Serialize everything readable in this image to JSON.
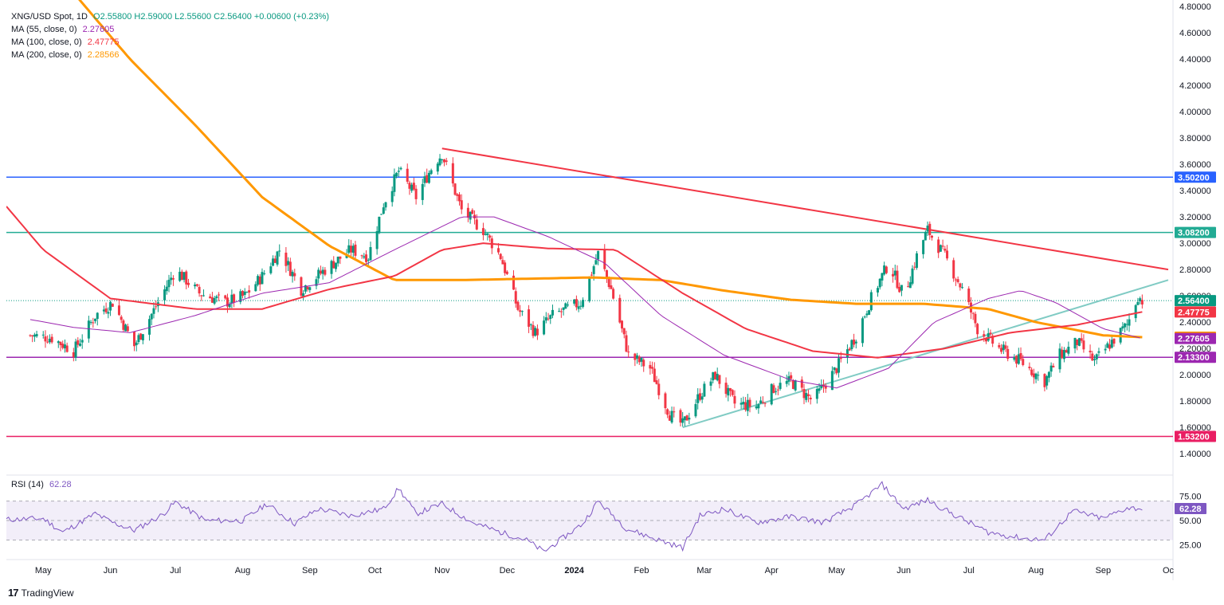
{
  "header": {
    "symbol": "XNG/USD Spot, 1D",
    "ohlc": "O2.55800  H2.59000  L2.55600  C2.56400  +0.00600 (+0.23%)",
    "ma55_label": "MA (55, close, 0)",
    "ma55_value": "2.27605",
    "ma100_label": "MA (100, close, 0)",
    "ma100_value": "2.47775",
    "ma200_label": "MA (200, close, 0)",
    "ma200_value": "2.28566"
  },
  "rsi": {
    "label": "RSI (14)",
    "value": "62.28"
  },
  "brand": {
    "logo": "17",
    "name": "TradingView"
  },
  "colors": {
    "up": "#089981",
    "down": "#f23645",
    "ma55": "#9c27b0",
    "ma100": "#f23645",
    "ma200": "#ff9800",
    "blue_level": "#2962ff",
    "teal_level": "#22ab94",
    "purple_level": "#9c27b0",
    "pink_level": "#e91e63",
    "trend_down": "#f23645",
    "trend_up": "#80cbc4",
    "rsi": "#7e57c2"
  },
  "chart_data": {
    "type": "candlestick",
    "y_axis_ticks": [
      "4.80000",
      "4.60000",
      "4.40000",
      "4.20000",
      "4.00000",
      "3.80000",
      "3.60000",
      "3.40000",
      "3.20000",
      "3.00000",
      "2.80000",
      "2.60000",
      "2.40000",
      "2.20000",
      "2.00000",
      "1.80000",
      "1.60000",
      "1.40000"
    ],
    "ylim": [
      1.25,
      4.8
    ],
    "x_axis_labels": [
      "May",
      "Jun",
      "Jul",
      "Aug",
      "Sep",
      "Oct",
      "Nov",
      "Dec",
      "2024",
      "Feb",
      "Mar",
      "Apr",
      "May",
      "Jun",
      "Jul",
      "Aug",
      "Sep",
      "Oc"
    ],
    "horizontal_levels": [
      {
        "value": 3.502,
        "label": "3.50200",
        "color": "#2962ff"
      },
      {
        "value": 3.082,
        "label": "3.08200",
        "color": "#22ab94"
      },
      {
        "value": 2.133,
        "label": "2.13300",
        "color": "#9c27b0"
      },
      {
        "value": 1.532,
        "label": "1.53200",
        "color": "#e91e63"
      }
    ],
    "price_badges": [
      {
        "value": 2.564,
        "label": "2.56400",
        "color": "#089981"
      },
      {
        "value": 2.47775,
        "label": "2.47775",
        "color": "#f23645"
      },
      {
        "value": 2.28566,
        "label": "2.28566",
        "color": "#ff9800"
      },
      {
        "value": 2.27605,
        "label": "2.27605",
        "color": "#9c27b0"
      }
    ],
    "last_price": 2.564,
    "trendlines": [
      {
        "name": "",
        "from": [
          "2023-11-01",
          3.72
        ],
        "to": [
          "2024-10-01",
          2.8
        ],
        "color": "#f23645"
      },
      {
        "name": "",
        "from": [
          "2024-02-20",
          1.6
        ],
        "to": [
          "2024-10-01",
          2.72
        ],
        "color": "#80cbc4"
      }
    ],
    "price_anchors": [
      [
        "2023-04-25",
        2.3
      ],
      [
        "2023-05-05",
        2.28
      ],
      [
        "2023-05-15",
        2.18
      ],
      [
        "2023-05-25",
        2.45
      ],
      [
        "2023-06-02",
        2.55
      ],
      [
        "2023-06-12",
        2.22
      ],
      [
        "2023-06-22",
        2.52
      ],
      [
        "2023-07-01",
        2.8
      ],
      [
        "2023-07-12",
        2.62
      ],
      [
        "2023-07-24",
        2.55
      ],
      [
        "2023-08-02",
        2.6
      ],
      [
        "2023-08-10",
        2.75
      ],
      [
        "2023-08-18",
        2.95
      ],
      [
        "2023-08-28",
        2.65
      ],
      [
        "2023-09-08",
        2.8
      ],
      [
        "2023-09-20",
        2.95
      ],
      [
        "2023-09-28",
        2.9
      ],
      [
        "2023-10-05",
        3.3
      ],
      [
        "2023-10-12",
        3.55
      ],
      [
        "2023-10-20",
        3.35
      ],
      [
        "2023-10-28",
        3.6
      ],
      [
        "2023-11-01",
        3.68
      ],
      [
        "2023-11-10",
        3.25
      ],
      [
        "2023-11-20",
        3.1
      ],
      [
        "2023-11-28",
        2.9
      ],
      [
        "2023-12-06",
        2.5
      ],
      [
        "2023-12-14",
        2.32
      ],
      [
        "2023-12-22",
        2.45
      ],
      [
        "2024-01-04",
        2.55
      ],
      [
        "2024-01-12",
        2.92
      ],
      [
        "2024-01-18",
        2.65
      ],
      [
        "2024-01-26",
        2.15
      ],
      [
        "2024-02-05",
        2.05
      ],
      [
        "2024-02-14",
        1.7
      ],
      [
        "2024-02-20",
        1.62
      ],
      [
        "2024-02-28",
        1.85
      ],
      [
        "2024-03-06",
        2.0
      ],
      [
        "2024-03-15",
        1.78
      ],
      [
        "2024-03-25",
        1.76
      ],
      [
        "2024-04-02",
        1.9
      ],
      [
        "2024-04-10",
        1.95
      ],
      [
        "2024-04-20",
        1.8
      ],
      [
        "2024-05-01",
        2.05
      ],
      [
        "2024-05-10",
        2.3
      ],
      [
        "2024-05-18",
        2.62
      ],
      [
        "2024-05-25",
        2.85
      ],
      [
        "2024-06-01",
        2.6
      ],
      [
        "2024-06-08",
        2.95
      ],
      [
        "2024-06-12",
        3.1
      ],
      [
        "2024-06-20",
        2.9
      ],
      [
        "2024-06-28",
        2.65
      ],
      [
        "2024-07-05",
        2.35
      ],
      [
        "2024-07-15",
        2.2
      ],
      [
        "2024-07-25",
        2.1
      ],
      [
        "2024-08-05",
        1.95
      ],
      [
        "2024-08-12",
        2.15
      ],
      [
        "2024-08-20",
        2.25
      ],
      [
        "2024-08-28",
        2.1
      ],
      [
        "2024-09-05",
        2.25
      ],
      [
        "2024-09-12",
        2.38
      ],
      [
        "2024-09-17",
        2.6
      ],
      [
        "2024-09-19",
        2.564
      ]
    ],
    "ma55_anchors": [
      [
        "2023-04-25",
        2.42
      ],
      [
        "2023-05-15",
        2.36
      ],
      [
        "2023-06-10",
        2.32
      ],
      [
        "2023-07-10",
        2.45
      ],
      [
        "2023-08-10",
        2.62
      ],
      [
        "2023-09-10",
        2.7
      ],
      [
        "2023-10-10",
        2.95
      ],
      [
        "2023-11-10",
        3.2
      ],
      [
        "2023-11-25",
        3.2
      ],
      [
        "2023-12-20",
        3.05
      ],
      [
        "2024-01-15",
        2.85
      ],
      [
        "2024-02-10",
        2.45
      ],
      [
        "2024-03-10",
        2.15
      ],
      [
        "2024-04-10",
        1.96
      ],
      [
        "2024-05-01",
        1.9
      ],
      [
        "2024-05-25",
        2.05
      ],
      [
        "2024-06-15",
        2.4
      ],
      [
        "2024-07-10",
        2.58
      ],
      [
        "2024-07-25",
        2.64
      ],
      [
        "2024-08-10",
        2.55
      ],
      [
        "2024-09-01",
        2.35
      ],
      [
        "2024-09-19",
        2.27605
      ]
    ],
    "ma100_anchors": [
      [
        "2023-04-14",
        3.28
      ],
      [
        "2023-05-01",
        2.95
      ],
      [
        "2023-06-01",
        2.58
      ],
      [
        "2023-07-10",
        2.5
      ],
      [
        "2023-08-10",
        2.5
      ],
      [
        "2023-09-10",
        2.65
      ],
      [
        "2023-10-10",
        2.75
      ],
      [
        "2023-11-01",
        2.95
      ],
      [
        "2023-11-20",
        3.0
      ],
      [
        "2023-12-20",
        2.96
      ],
      [
        "2024-01-20",
        2.95
      ],
      [
        "2024-02-20",
        2.62
      ],
      [
        "2024-03-20",
        2.35
      ],
      [
        "2024-04-20",
        2.18
      ],
      [
        "2024-05-20",
        2.13
      ],
      [
        "2024-06-20",
        2.2
      ],
      [
        "2024-07-20",
        2.32
      ],
      [
        "2024-08-20",
        2.38
      ],
      [
        "2024-09-19",
        2.47775
      ]
    ],
    "ma200_anchors": [
      [
        "2023-05-10",
        5.0
      ],
      [
        "2023-06-10",
        4.4
      ],
      [
        "2023-07-10",
        3.9
      ],
      [
        "2023-08-10",
        3.35
      ],
      [
        "2023-09-10",
        2.98
      ],
      [
        "2023-10-10",
        2.72
      ],
      [
        "2023-11-10",
        2.72
      ],
      [
        "2023-12-10",
        2.73
      ],
      [
        "2024-01-10",
        2.74
      ],
      [
        "2024-02-10",
        2.72
      ],
      [
        "2024-03-10",
        2.64
      ],
      [
        "2024-04-10",
        2.57
      ],
      [
        "2024-05-10",
        2.54
      ],
      [
        "2024-06-10",
        2.54
      ],
      [
        "2024-07-10",
        2.5
      ],
      [
        "2024-08-01",
        2.4
      ],
      [
        "2024-09-01",
        2.3
      ],
      [
        "2024-09-19",
        2.28566
      ]
    ],
    "rsi_panel": {
      "ylim": [
        10,
        95
      ],
      "ticks": [
        "75.00",
        "50.00",
        "25.00"
      ],
      "band": [
        30,
        70
      ],
      "last_value": 62.28,
      "anchors": [
        [
          "2023-04-14",
          51
        ],
        [
          "2023-05-01",
          52
        ],
        [
          "2023-05-10",
          38
        ],
        [
          "2023-05-25",
          57
        ],
        [
          "2023-06-02",
          48
        ],
        [
          "2023-06-12",
          40
        ],
        [
          "2023-06-25",
          56
        ],
        [
          "2023-07-01",
          69
        ],
        [
          "2023-07-15",
          50
        ],
        [
          "2023-08-01",
          50
        ],
        [
          "2023-08-12",
          67
        ],
        [
          "2023-08-25",
          47
        ],
        [
          "2023-09-05",
          62
        ],
        [
          "2023-09-20",
          55
        ],
        [
          "2023-10-05",
          62
        ],
        [
          "2023-10-12",
          83
        ],
        [
          "2023-10-20",
          57
        ],
        [
          "2023-11-01",
          67
        ],
        [
          "2023-11-15",
          48
        ],
        [
          "2023-11-28",
          38
        ],
        [
          "2023-12-10",
          30
        ],
        [
          "2023-12-18",
          18
        ],
        [
          "2024-01-05",
          47
        ],
        [
          "2024-01-12",
          70
        ],
        [
          "2024-01-25",
          42
        ],
        [
          "2024-02-05",
          33
        ],
        [
          "2024-02-20",
          22
        ],
        [
          "2024-02-28",
          55
        ],
        [
          "2024-03-10",
          62
        ],
        [
          "2024-03-25",
          48
        ],
        [
          "2024-04-10",
          54
        ],
        [
          "2024-04-25",
          48
        ],
        [
          "2024-05-10",
          66
        ],
        [
          "2024-05-22",
          87
        ],
        [
          "2024-06-01",
          62
        ],
        [
          "2024-06-12",
          71
        ],
        [
          "2024-06-25",
          55
        ],
        [
          "2024-07-10",
          38
        ],
        [
          "2024-07-25",
          32
        ],
        [
          "2024-08-05",
          30
        ],
        [
          "2024-08-18",
          60
        ],
        [
          "2024-09-01",
          52
        ],
        [
          "2024-09-12",
          63
        ],
        [
          "2024-09-19",
          62.28
        ]
      ]
    }
  }
}
